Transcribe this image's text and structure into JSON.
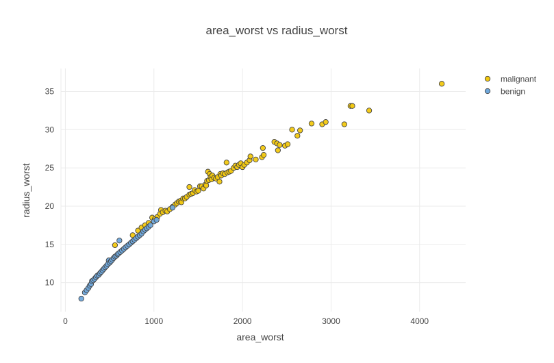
{
  "chart_data": {
    "type": "scatter",
    "title": "area_worst vs radius_worst",
    "xlabel": "area_worst",
    "ylabel": "radius_worst",
    "xlim": [
      -50,
      4520
    ],
    "ylim": [
      6.2,
      38
    ],
    "xticks": [
      0,
      1000,
      2000,
      3000,
      4000
    ],
    "yticks": [
      10,
      15,
      20,
      25,
      30,
      35
    ],
    "grid": true,
    "legend_position": "top-right",
    "series": [
      {
        "name": "malignant",
        "color": "#f2c80f",
        "points": [
          [
            560,
            14.9
          ],
          [
            760,
            16.2
          ],
          [
            820,
            16.8
          ],
          [
            860,
            17.2
          ],
          [
            900,
            17.5
          ],
          [
            940,
            17.8
          ],
          [
            980,
            18.5
          ],
          [
            1010,
            18.3
          ],
          [
            1040,
            18.6
          ],
          [
            1070,
            19.0
          ],
          [
            1080,
            19.5
          ],
          [
            1100,
            19.2
          ],
          [
            1130,
            19.4
          ],
          [
            1150,
            19.3
          ],
          [
            1180,
            19.6
          ],
          [
            1210,
            19.9
          ],
          [
            1240,
            20.2
          ],
          [
            1260,
            20.4
          ],
          [
            1280,
            20.6
          ],
          [
            1300,
            20.7
          ],
          [
            1310,
            20.5
          ],
          [
            1330,
            21.0
          ],
          [
            1350,
            21.0
          ],
          [
            1370,
            21.2
          ],
          [
            1400,
            21.5
          ],
          [
            1400,
            22.5
          ],
          [
            1420,
            21.6
          ],
          [
            1440,
            21.7
          ],
          [
            1460,
            22.1
          ],
          [
            1480,
            21.9
          ],
          [
            1500,
            22.0
          ],
          [
            1520,
            22.6
          ],
          [
            1540,
            22.6
          ],
          [
            1560,
            22.3
          ],
          [
            1580,
            22.8
          ],
          [
            1590,
            22.7
          ],
          [
            1600,
            23.3
          ],
          [
            1610,
            24.5
          ],
          [
            1620,
            23.4
          ],
          [
            1630,
            24.2
          ],
          [
            1640,
            23.8
          ],
          [
            1650,
            23.5
          ],
          [
            1660,
            24.0
          ],
          [
            1680,
            23.7
          ],
          [
            1700,
            23.6
          ],
          [
            1720,
            23.8
          ],
          [
            1740,
            23.2
          ],
          [
            1750,
            24.2
          ],
          [
            1760,
            24.0
          ],
          [
            1780,
            24.3
          ],
          [
            1800,
            24.2
          ],
          [
            1820,
            25.7
          ],
          [
            1830,
            24.4
          ],
          [
            1850,
            24.5
          ],
          [
            1870,
            24.6
          ],
          [
            1900,
            25.0
          ],
          [
            1920,
            25.3
          ],
          [
            1940,
            25.1
          ],
          [
            1960,
            25.4
          ],
          [
            1980,
            25.6
          ],
          [
            2000,
            25.1
          ],
          [
            2020,
            25.4
          ],
          [
            2050,
            25.7
          ],
          [
            2080,
            26.0
          ],
          [
            2090,
            26.5
          ],
          [
            2150,
            26.1
          ],
          [
            2220,
            26.4
          ],
          [
            2230,
            27.6
          ],
          [
            2240,
            26.7
          ],
          [
            2360,
            28.4
          ],
          [
            2390,
            28.2
          ],
          [
            2400,
            27.3
          ],
          [
            2420,
            28.0
          ],
          [
            2480,
            27.9
          ],
          [
            2510,
            28.1
          ],
          [
            2560,
            30.0
          ],
          [
            2620,
            29.2
          ],
          [
            2650,
            29.9
          ],
          [
            2780,
            30.8
          ],
          [
            2900,
            30.7
          ],
          [
            2940,
            31.0
          ],
          [
            3150,
            30.7
          ],
          [
            3220,
            33.1
          ],
          [
            3240,
            33.1
          ],
          [
            3430,
            32.5
          ],
          [
            4250,
            36.0
          ]
        ]
      },
      {
        "name": "benign",
        "color": "#6fa8dc",
        "points": [
          [
            180,
            7.9
          ],
          [
            220,
            8.7
          ],
          [
            240,
            9.0
          ],
          [
            260,
            9.3
          ],
          [
            275,
            9.6
          ],
          [
            290,
            9.8
          ],
          [
            300,
            10.2
          ],
          [
            315,
            10.3
          ],
          [
            330,
            10.5
          ],
          [
            345,
            10.7
          ],
          [
            360,
            10.9
          ],
          [
            375,
            11.0
          ],
          [
            390,
            11.2
          ],
          [
            405,
            11.4
          ],
          [
            420,
            11.6
          ],
          [
            435,
            11.8
          ],
          [
            450,
            12.0
          ],
          [
            465,
            12.2
          ],
          [
            480,
            12.4
          ],
          [
            490,
            12.9
          ],
          [
            500,
            12.6
          ],
          [
            515,
            12.8
          ],
          [
            530,
            13.0
          ],
          [
            545,
            13.2
          ],
          [
            560,
            13.4
          ],
          [
            575,
            13.5
          ],
          [
            590,
            13.7
          ],
          [
            600,
            13.8
          ],
          [
            610,
            15.5
          ],
          [
            620,
            14.0
          ],
          [
            640,
            14.2
          ],
          [
            660,
            14.4
          ],
          [
            680,
            14.6
          ],
          [
            700,
            14.8
          ],
          [
            720,
            15.0
          ],
          [
            740,
            15.2
          ],
          [
            760,
            15.4
          ],
          [
            780,
            15.6
          ],
          [
            800,
            15.8
          ],
          [
            820,
            16.0
          ],
          [
            840,
            16.2
          ],
          [
            860,
            16.4
          ],
          [
            880,
            16.7
          ],
          [
            900,
            16.9
          ],
          [
            920,
            17.1
          ],
          [
            940,
            17.3
          ],
          [
            960,
            17.5
          ],
          [
            1000,
            18.0
          ],
          [
            1030,
            18.2
          ],
          [
            1210,
            19.8
          ]
        ]
      }
    ]
  }
}
